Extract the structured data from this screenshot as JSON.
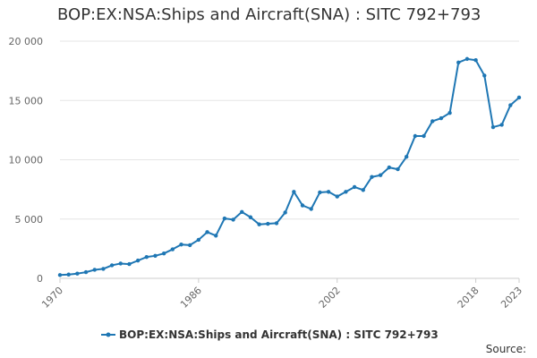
{
  "chart_data": {
    "type": "line",
    "title": "BOP:EX:NSA:Ships and Aircraft(SNA) : SITC 792+793",
    "xlabel": "",
    "ylabel": "",
    "xlim": [
      1970,
      2023
    ],
    "ylim": [
      0,
      20000
    ],
    "x_ticks": [
      1970,
      1986,
      2002,
      2018,
      2023
    ],
    "y_ticks": [
      {
        "value": 0,
        "label": "0"
      },
      {
        "value": 5000,
        "label": "5 000"
      },
      {
        "value": 10000,
        "label": "10 000"
      },
      {
        "value": 15000,
        "label": "15 000"
      },
      {
        "value": 20000,
        "label": "20 000"
      }
    ],
    "grid": "horizontal",
    "legend": "bottom-center",
    "series": [
      {
        "name": "BOP:EX:NSA:Ships and Aircraft(SNA) : SITC 792+793",
        "color": "#1f77b4",
        "x": [
          1970,
          1971,
          1972,
          1973,
          1974,
          1975,
          1976,
          1977,
          1978,
          1979,
          1980,
          1981,
          1982,
          1983,
          1984,
          1985,
          1986,
          1987,
          1988,
          1989,
          1990,
          1991,
          1992,
          1993,
          1994,
          1995,
          1996,
          1997,
          1998,
          1999,
          2000,
          2001,
          2002,
          2003,
          2004,
          2005,
          2006,
          2007,
          2008,
          2009,
          2010,
          2011,
          2012,
          2013,
          2014,
          2015,
          2016,
          2017,
          2018,
          2019,
          2020,
          2021,
          2022,
          2023
        ],
        "values": [
          280,
          320,
          400,
          520,
          720,
          800,
          1100,
          1250,
          1200,
          1500,
          1800,
          1900,
          2100,
          2450,
          2850,
          2800,
          3250,
          3900,
          3600,
          5050,
          4950,
          5600,
          5150,
          4550,
          4600,
          4650,
          5550,
          7300,
          6150,
          5850,
          7250,
          7300,
          6900,
          7300,
          7700,
          7450,
          8550,
          8700,
          9350,
          9200,
          10250,
          12000,
          12000,
          13250,
          13500,
          13950,
          18200,
          18500,
          18400,
          17100,
          12750,
          12950,
          14600,
          15250
        ]
      }
    ],
    "source": "Source:"
  }
}
